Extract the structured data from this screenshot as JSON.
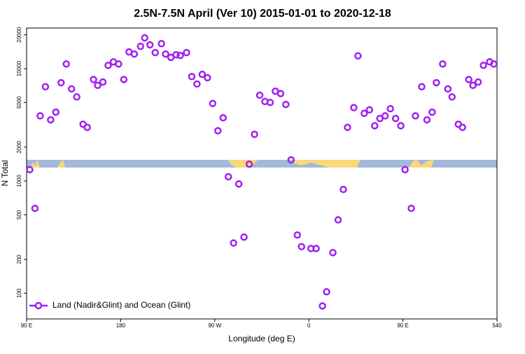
{
  "chart_data": {
    "type": "scatter",
    "title": "2.5N-7.5N April (Ver 10)   2015-01-01 to 2020-12-18",
    "x_label": "Longitude (deg E)",
    "y_label": "N Total",
    "x": [
      93,
      98,
      103,
      108,
      113,
      118,
      123,
      128,
      133,
      138,
      144,
      148,
      154,
      158,
      163,
      168,
      173,
      178,
      183,
      188,
      193,
      199,
      203,
      208,
      213,
      219,
      223,
      228,
      233,
      237,
      243,
      248,
      253,
      258,
      263,
      268,
      273,
      278,
      283,
      288,
      293,
      298,
      303,
      308,
      313,
      318,
      323,
      328,
      333,
      338,
      343,
      349,
      353,
      362,
      367,
      373,
      377,
      383,
      388,
      393,
      397,
      403,
      407,
      413,
      418,
      423,
      428,
      433,
      438,
      443,
      448,
      452,
      458,
      462,
      468,
      473,
      478,
      482,
      488,
      493,
      497,
      503,
      507,
      513,
      517,
      522,
      527,
      533,
      537
    ],
    "series": [
      {
        "name": "Land (Nadir&Glint) and Ocean (Glint)",
        "color": "#a020f0",
        "values": [
          1260,
          570,
          3800,
          6900,
          3500,
          4100,
          7500,
          11000,
          6600,
          5600,
          3200,
          3000,
          8000,
          7100,
          7600,
          10700,
          11500,
          11000,
          8000,
          14100,
          13500,
          15800,
          18800,
          16300,
          13900,
          16700,
          13500,
          12600,
          13300,
          13100,
          13900,
          8500,
          7300,
          8900,
          8300,
          4900,
          2800,
          3650,
          1090,
          280,
          940,
          316,
          1410,
          2600,
          5800,
          5100,
          5000,
          6300,
          6000,
          4800,
          1540,
          330,
          260,
          250,
          250,
          77,
          103,
          230,
          450,
          840,
          3000,
          4500,
          13000,
          4000,
          4300,
          3100,
          3600,
          3800,
          4400,
          3600,
          3100,
          1260,
          570,
          3800,
          6900,
          3500,
          4100,
          7500,
          11000,
          6600,
          5600,
          3200,
          3000,
          8000,
          7100,
          7600,
          10700,
          11500,
          11000
        ]
      }
    ],
    "xlim": [
      90,
      540
    ],
    "xticks": [
      {
        "value": 90,
        "label": "90 E"
      },
      180,
      {
        "value": 270,
        "label": "90 W"
      },
      {
        "value": 360,
        "label": "0"
      },
      {
        "value": 450,
        "label": "90 E"
      },
      540
    ],
    "ylim": [
      59,
      23000
    ],
    "log_y": true,
    "yticks": [
      100,
      200,
      500,
      1000,
      2000,
      5000,
      10000,
      20000
    ],
    "legend": "lower left"
  }
}
